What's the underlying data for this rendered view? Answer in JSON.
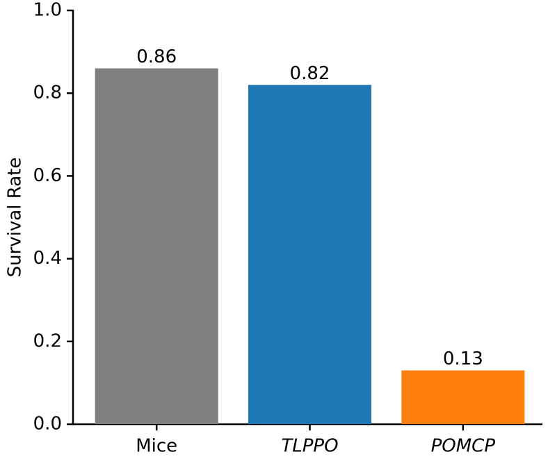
{
  "chart_data": {
    "type": "bar",
    "y_label": "Survival Rate",
    "categories": [
      "Mice",
      "TLPPO",
      "POMCP"
    ],
    "values": [
      0.86,
      0.82,
      0.13
    ],
    "colors": [
      "#7f7f7f",
      "#1f77b4",
      "#ff7f0e"
    ],
    "label_colors": [
      "#000000",
      "#1f77b4",
      "#ff7f0e"
    ],
    "label_italic": [
      false,
      true,
      true
    ],
    "ylim": [
      0,
      1
    ],
    "yticks": [
      {
        "value": 0,
        "label": "0.0"
      },
      0.2,
      0.4,
      0.6,
      0.8,
      {
        "value": 1,
        "label": "1.0"
      }
    ],
    "grid": false
  }
}
